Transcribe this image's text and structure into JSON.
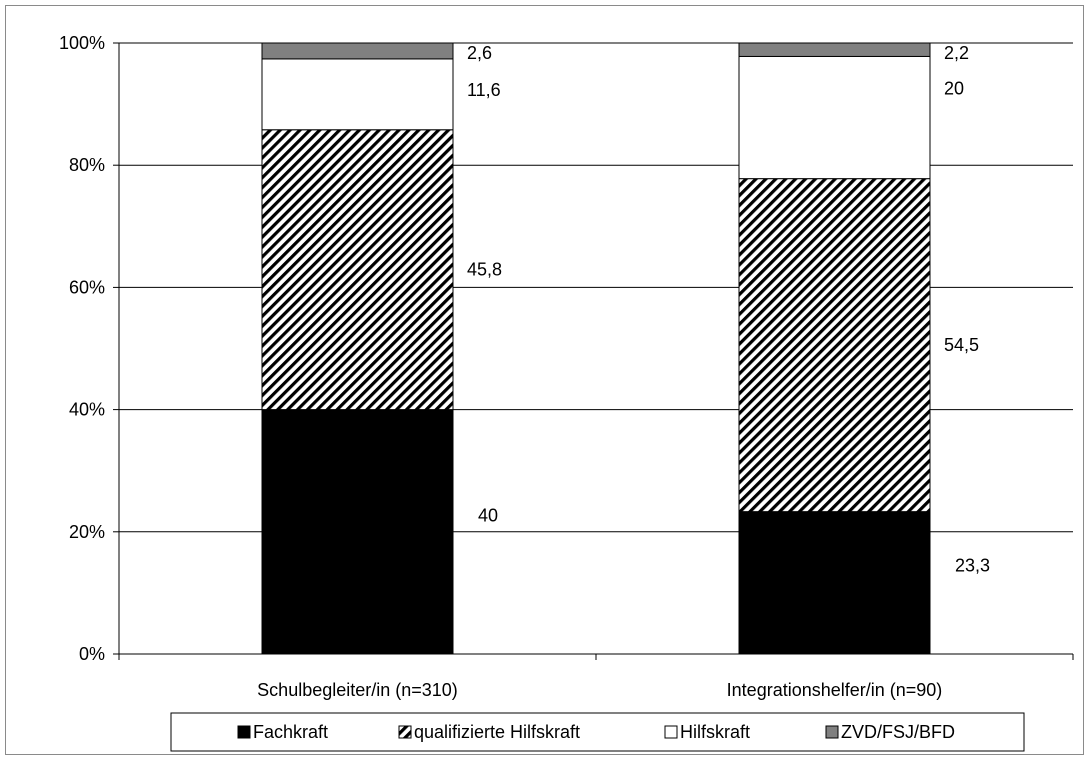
{
  "chart_data": {
    "type": "bar",
    "stacked": true,
    "categories": [
      "Schulbegleiter/in (n=310)",
      "Integrationshelfer/in (n=90)"
    ],
    "series": [
      {
        "name": "Fachkraft",
        "values": [
          40,
          23.3
        ],
        "labels": [
          "40",
          "23,3"
        ],
        "color": "#000000",
        "pattern": "solid"
      },
      {
        "name": "qualifizierte Hilfskraft",
        "values": [
          45.8,
          54.5
        ],
        "labels": [
          "45,8",
          "54,5"
        ],
        "color": "#000000",
        "pattern": "diagonal-hatch"
      },
      {
        "name": "Hilfskraft",
        "values": [
          11.6,
          20
        ],
        "labels": [
          "11,6",
          "20"
        ],
        "color": "#ffffff",
        "pattern": "solid"
      },
      {
        "name": "ZVD/FSJ/BFD",
        "values": [
          2.6,
          2.2
        ],
        "labels": [
          "2,6",
          "2,2"
        ],
        "color": "#808080",
        "pattern": "solid"
      }
    ],
    "yticks": [
      "0%",
      "20%",
      "40%",
      "60%",
      "80%",
      "100%"
    ],
    "ylim": [
      0,
      100
    ],
    "grid": true,
    "legend_position": "bottom"
  }
}
